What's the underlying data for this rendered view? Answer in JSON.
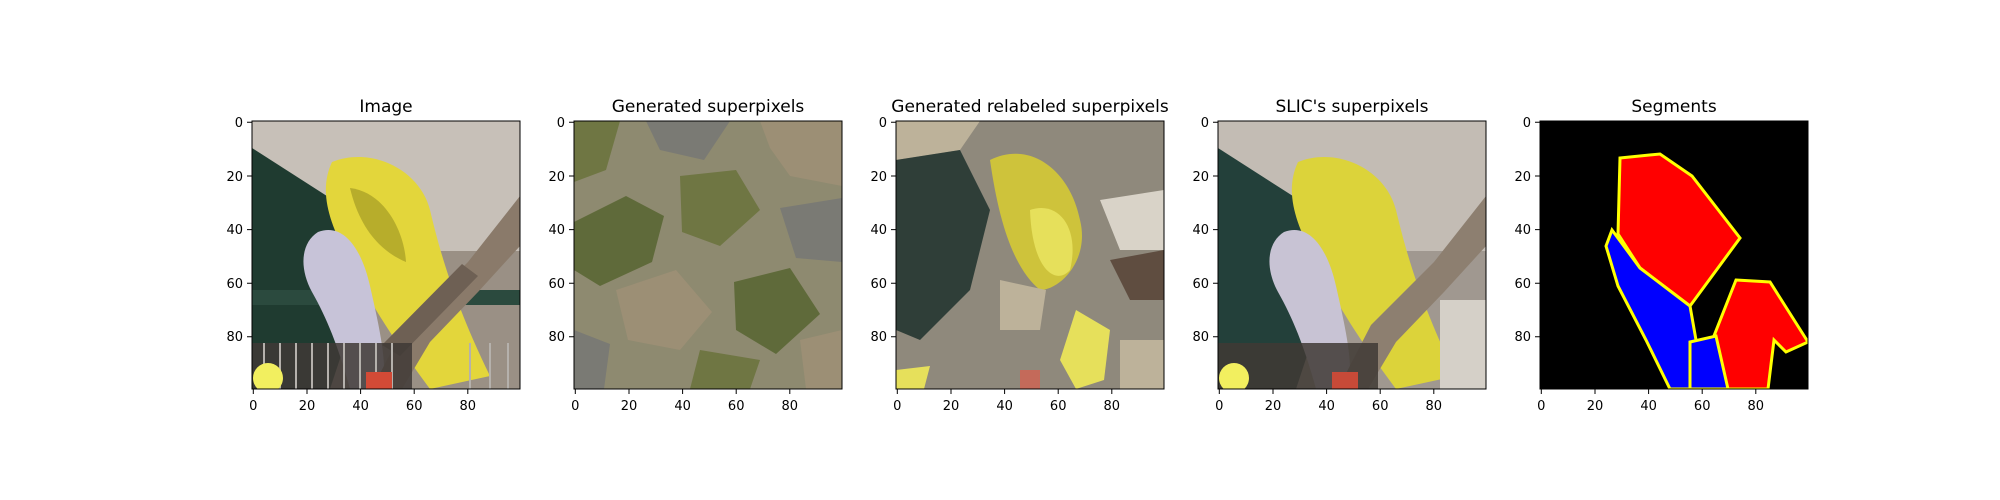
{
  "figure": {
    "panels": [
      {
        "title": "Image",
        "x_ticks": [
          "0",
          "20",
          "40",
          "60",
          "80"
        ],
        "y_ticks": [
          "0",
          "20",
          "40",
          "60",
          "80"
        ],
        "icon": "budgie-photo",
        "colors": {
          "background": "#9a9085",
          "wall": "#c7c0b8",
          "leaves": "#1f3b30",
          "bird": "#e3d63b",
          "bird_shadow": "#b7ad2b",
          "companion": "#c7c3d8",
          "branch": "#8a7a6a",
          "cage": "#403a36"
        }
      },
      {
        "title": "Generated superpixels",
        "x_ticks": [
          "0",
          "20",
          "40",
          "60",
          "80"
        ],
        "y_ticks": [
          "0",
          "20",
          "40",
          "60",
          "80"
        ],
        "icon": "random-superpixels",
        "colors": {
          "base": "#8e8a70",
          "olive": "#6f7643",
          "grey": "#7a7a74",
          "tan": "#9c8f75",
          "dark_olive": "#5f6a3a"
        }
      },
      {
        "title": "Generated relabeled superpixels",
        "x_ticks": [
          "0",
          "20",
          "40",
          "60",
          "80"
        ],
        "y_ticks": [
          "0",
          "20",
          "40",
          "60",
          "80"
        ],
        "icon": "relabeled-superpixels",
        "colors": {
          "base": "#8f897c",
          "dark_green": "#2f3e38",
          "yellow": "#cec33b",
          "light_yellow": "#e6e05b",
          "beige": "#bdb29a",
          "brown": "#5f4d40",
          "pale": "#d9d3c8"
        }
      },
      {
        "title": "SLIC's superpixels",
        "x_ticks": [
          "0",
          "20",
          "40",
          "60",
          "80"
        ],
        "y_ticks": [
          "0",
          "20",
          "40",
          "60",
          "80"
        ],
        "icon": "slic-superpixels",
        "colors": {
          "background": "#a09890",
          "wall": "#c3bcb4",
          "leaves": "#23403a",
          "bird": "#dcd33a",
          "branch": "#8d7f70",
          "companion": "#c8c3d4",
          "cage": "#3f3a35"
        }
      },
      {
        "title": "Segments",
        "x_ticks": [
          "0",
          "20",
          "40",
          "60",
          "80"
        ],
        "y_ticks": [
          "0",
          "20",
          "40",
          "60",
          "80"
        ],
        "icon": "segment-mask",
        "colors": {
          "background": "#000000",
          "segment_a": "#ff0000",
          "segment_b": "#0000ff",
          "boundary": "#ffff00"
        }
      }
    ]
  }
}
